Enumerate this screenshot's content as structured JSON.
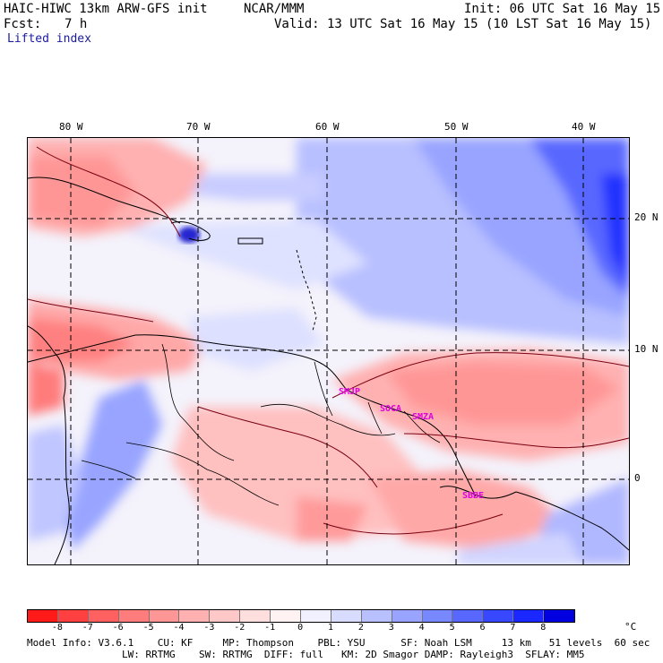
{
  "header": {
    "title": "HAIC-HIWC 13km ARW-GFS init",
    "org": "NCAR/MMM",
    "init": "Init: 06 UTC Sat 16 May 15",
    "fcst_label": "Fcst:",
    "fcst_value": "7 h",
    "valid": "Valid: 13 UTC Sat 16 May 15 (10 LST Sat 16 May 15)",
    "field": "Lifted index"
  },
  "map": {
    "lon_labels": [
      "80 W",
      "70 W",
      "60 W",
      "50 W",
      "40 W"
    ],
    "lat_labels": [
      "20 N",
      "10 N",
      "0"
    ],
    "sites": [
      "SMJP",
      "SOCA",
      "SMZA",
      "SBBE"
    ]
  },
  "colorbar": {
    "ticks": [
      "-8",
      "-7",
      "-6",
      "-5",
      "-4",
      "-3",
      "-2",
      "-1",
      "0",
      "1",
      "2",
      "3",
      "4",
      "5",
      "6",
      "7",
      "8"
    ],
    "unit": "°C",
    "colors": [
      "#ff1a1a",
      "#ff4040",
      "#ff6060",
      "#ff7c7c",
      "#ff9696",
      "#ffb0b0",
      "#ffc8c8",
      "#ffdede",
      "#fff2f2",
      "#f0f0ff",
      "#d8dcff",
      "#b8c0ff",
      "#98a4ff",
      "#7888ff",
      "#5868ff",
      "#3848ff",
      "#1a28ff",
      "#0000e0"
    ]
  },
  "footer": {
    "line1": "Model Info: V3.6.1    CU: KF     MP: Thompson    PBL: YSU      SF: Noah LSM     13 km   51 levels  60 sec",
    "line2": "                LW: RRTMG    SW: RRTMG  DIFF: full   KM: 2D Smagor DAMP: Rayleigh3  SFLAY: MM5"
  }
}
